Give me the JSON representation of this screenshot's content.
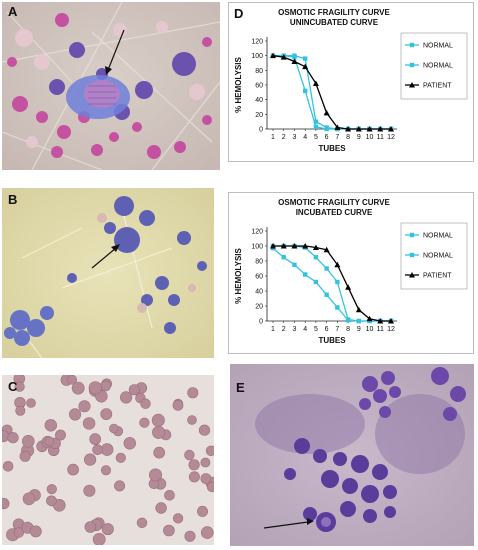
{
  "panels": {
    "a": {
      "letter": "A"
    },
    "b": {
      "letter": "B"
    },
    "c": {
      "letter": "C"
    },
    "d": {
      "letter": "D"
    },
    "e": {
      "letter": "E"
    }
  },
  "chart_data": [
    {
      "type": "line",
      "title": "OSMOTIC FRAGILITY CURVE",
      "subtitle": "UNINCUBATED CURVE",
      "xlabel": "TUBES",
      "ylabel": "% HEMOLYSIS",
      "ylim": [
        0,
        120
      ],
      "yticks": [
        0,
        20,
        40,
        60,
        80,
        100,
        120
      ],
      "x": [
        1,
        2,
        3,
        4,
        5,
        6,
        7,
        8,
        9,
        10,
        11,
        12
      ],
      "grid": false,
      "legend_position": "right",
      "series": [
        {
          "name": "NORMAL",
          "marker": "square",
          "color": "#33c3e0",
          "values": [
            100,
            100,
            98,
            52,
            3,
            0,
            0,
            0,
            0,
            0,
            0,
            0
          ]
        },
        {
          "name": "NORMAL",
          "marker": "square",
          "color": "#33c3e0",
          "values": [
            100,
            100,
            100,
            96,
            10,
            2,
            0,
            0,
            0,
            0,
            0,
            0
          ]
        },
        {
          "name": "PATIENT",
          "marker": "triangle",
          "color": "#000000",
          "values": [
            100,
            98,
            92,
            85,
            62,
            22,
            2,
            0,
            0,
            0,
            0,
            0
          ]
        }
      ]
    },
    {
      "type": "line",
      "title": "OSMOTIC FRAGILITY CURVE",
      "subtitle": "INCUBATED CURVE",
      "xlabel": "TUBES",
      "ylabel": "% HEMOLYSIS",
      "ylim": [
        0,
        120
      ],
      "yticks": [
        0,
        20,
        40,
        60,
        80,
        100,
        120
      ],
      "x": [
        1,
        2,
        3,
        4,
        5,
        6,
        7,
        8,
        9,
        10,
        11,
        12
      ],
      "grid": false,
      "legend_position": "right",
      "series": [
        {
          "name": "NORMAL",
          "marker": "square",
          "color": "#33c3e0",
          "values": [
            97,
            85,
            75,
            62,
            52,
            35,
            18,
            1,
            0,
            0,
            0,
            0
          ]
        },
        {
          "name": "NORMAL",
          "marker": "square",
          "color": "#33c3e0",
          "values": [
            100,
            100,
            100,
            98,
            85,
            70,
            52,
            2,
            0,
            0,
            0,
            0
          ]
        },
        {
          "name": "PATIENT",
          "marker": "triangle",
          "color": "#000000",
          "values": [
            100,
            100,
            100,
            100,
            98,
            95,
            75,
            45,
            15,
            3,
            0,
            0
          ]
        }
      ]
    }
  ]
}
